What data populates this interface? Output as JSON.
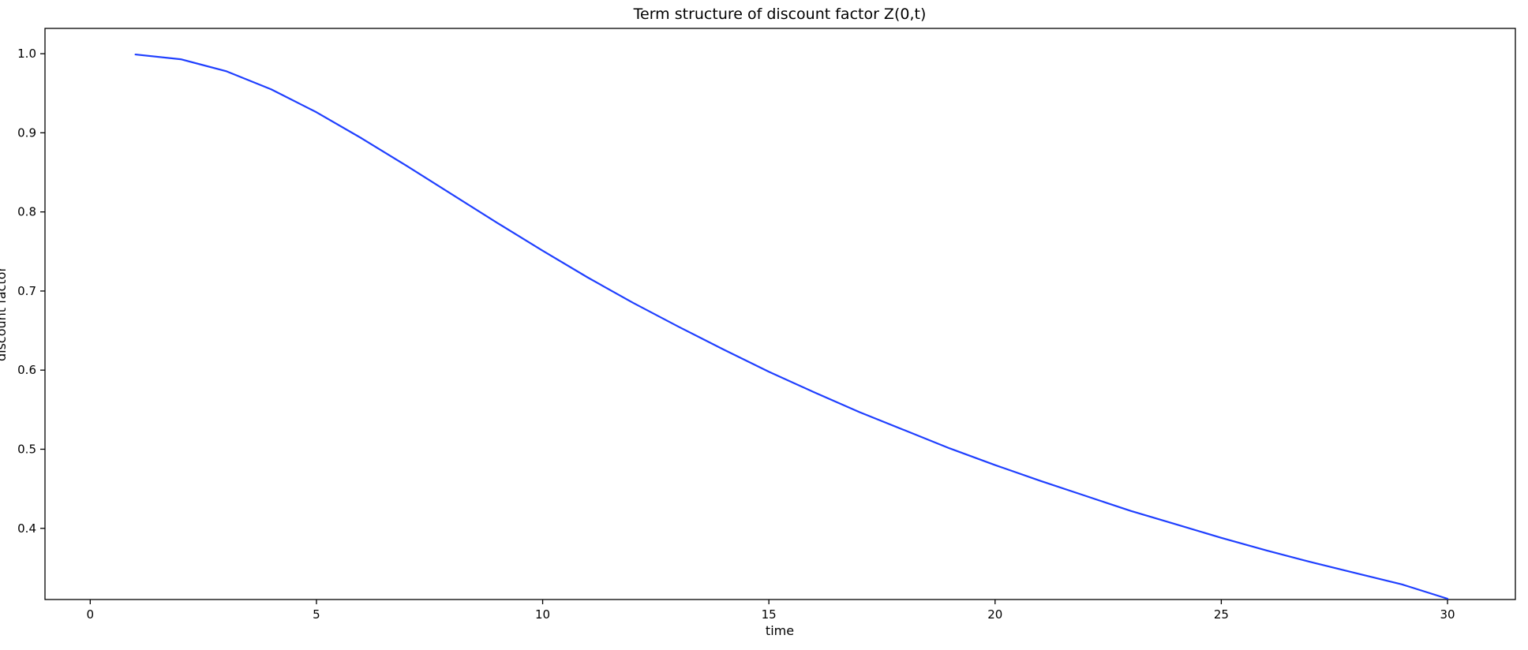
{
  "chart_data": {
    "type": "line",
    "title": "Term structure of discount factor Z(0,t)",
    "xlabel": "time",
    "ylabel": "discount factor",
    "xlim": [
      -1,
      31.5
    ],
    "ylim": [
      0.31,
      1.032
    ],
    "xticks": [
      0,
      5,
      10,
      15,
      20,
      25,
      30
    ],
    "xtick_labels": [
      "0",
      "5",
      "10",
      "15",
      "20",
      "25",
      "30"
    ],
    "yticks": [
      0.4,
      0.5,
      0.6,
      0.7,
      0.8,
      0.9,
      1.0
    ],
    "ytick_labels": [
      "0.4",
      "0.5",
      "0.6",
      "0.7",
      "0.8",
      "0.9",
      "1.0"
    ],
    "grid": false,
    "legend": "none",
    "series": [
      {
        "color": "#1f3fff",
        "x": [
          1,
          2,
          3,
          4,
          5,
          6,
          7,
          8,
          9,
          10,
          11,
          12,
          13,
          14,
          15,
          16,
          17,
          18,
          19,
          20,
          21,
          22,
          23,
          24,
          25,
          26,
          27,
          28,
          29,
          30
        ],
        "y": [
          0.999,
          0.993,
          0.978,
          0.955,
          0.926,
          0.893,
          0.858,
          0.822,
          0.786,
          0.751,
          0.717,
          0.685,
          0.655,
          0.626,
          0.598,
          0.572,
          0.547,
          0.524,
          0.501,
          0.48,
          0.46,
          0.441,
          0.422,
          0.405,
          0.388,
          0.372,
          0.357,
          0.343,
          0.329,
          0.311
        ]
      }
    ]
  }
}
